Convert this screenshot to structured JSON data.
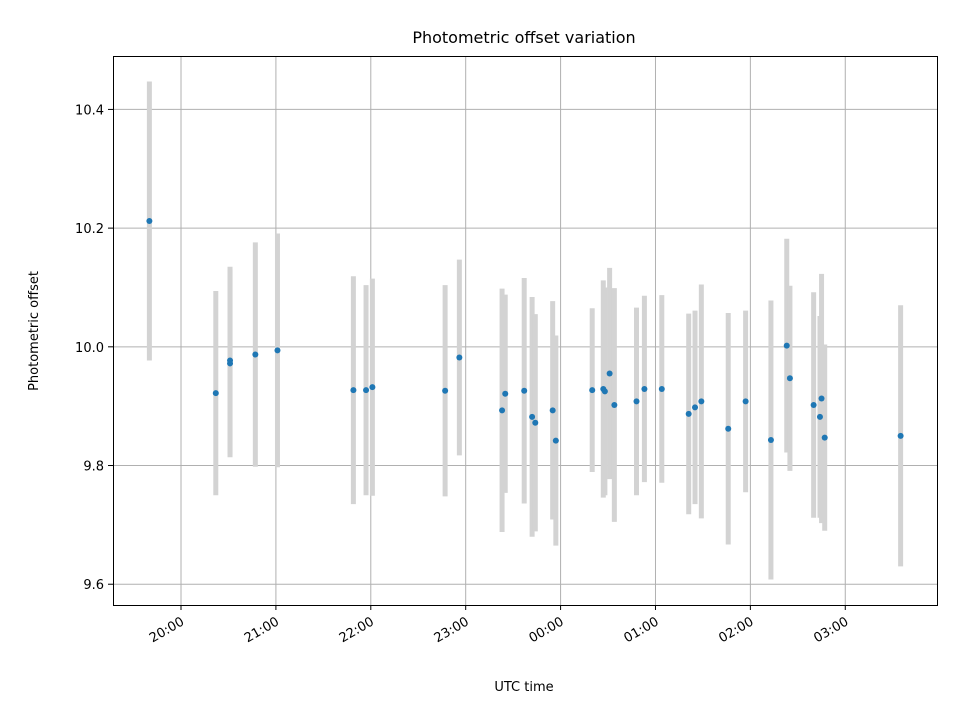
{
  "chart_data": {
    "type": "scatter",
    "title": "Photometric offset variation",
    "xlabel": "UTC time",
    "ylabel": "Photometric offset",
    "grid": true,
    "xlim": [
      "19:17",
      "03:58"
    ],
    "ylim": [
      9.565,
      10.49
    ],
    "xticks": [
      "20:00",
      "21:00",
      "22:00",
      "23:00",
      "00:00",
      "01:00",
      "02:00",
      "03:00"
    ],
    "yticks": [
      9.6,
      9.8,
      10.0,
      10.2,
      10.4
    ],
    "ytick_labels": [
      "9.6",
      "9.8",
      "10.0",
      "10.2",
      "10.4"
    ],
    "point_color": "#1f77b4",
    "errorbar_color": "#d3d3d3",
    "points": [
      {
        "x": "19:40",
        "y": 10.212,
        "err": 0.235
      },
      {
        "x": "20:22",
        "y": 9.922,
        "err": 0.172
      },
      {
        "x": "20:31",
        "y": 9.977,
        "err": 0.158
      },
      {
        "x": "20:31",
        "y": 9.972,
        "err": 0.158
      },
      {
        "x": "20:47",
        "y": 9.987,
        "err": 0.189
      },
      {
        "x": "21:01",
        "y": 9.994,
        "err": 0.197
      },
      {
        "x": "21:49",
        "y": 9.927,
        "err": 0.192
      },
      {
        "x": "21:57",
        "y": 9.927,
        "err": 0.177
      },
      {
        "x": "22:01",
        "y": 9.932,
        "err": 0.183
      },
      {
        "x": "22:47",
        "y": 9.926,
        "err": 0.178
      },
      {
        "x": "22:56",
        "y": 9.982,
        "err": 0.165
      },
      {
        "x": "23:23",
        "y": 9.893,
        "err": 0.205
      },
      {
        "x": "23:25",
        "y": 9.921,
        "err": 0.167
      },
      {
        "x": "23:37",
        "y": 9.926,
        "err": 0.19
      },
      {
        "x": "23:42",
        "y": 9.882,
        "err": 0.202
      },
      {
        "x": "23:44",
        "y": 9.872,
        "err": 0.183
      },
      {
        "x": "23:55",
        "y": 9.893,
        "err": 0.184
      },
      {
        "x": "23:57",
        "y": 9.842,
        "err": 0.177
      },
      {
        "x": "00:20",
        "y": 9.927,
        "err": 0.138
      },
      {
        "x": "00:27",
        "y": 9.929,
        "err": 0.183
      },
      {
        "x": "00:28",
        "y": 9.925,
        "err": 0.175
      },
      {
        "x": "00:31",
        "y": 9.955,
        "err": 0.178
      },
      {
        "x": "00:34",
        "y": 9.902,
        "err": 0.197
      },
      {
        "x": "00:48",
        "y": 9.908,
        "err": 0.158
      },
      {
        "x": "00:53",
        "y": 9.929,
        "err": 0.157
      },
      {
        "x": "01:04",
        "y": 9.929,
        "err": 0.158
      },
      {
        "x": "01:21",
        "y": 9.887,
        "err": 0.169
      },
      {
        "x": "01:25",
        "y": 9.898,
        "err": 0.163
      },
      {
        "x": "01:29",
        "y": 9.908,
        "err": 0.197
      },
      {
        "x": "01:46",
        "y": 9.862,
        "err": 0.195
      },
      {
        "x": "01:57",
        "y": 9.908,
        "err": 0.153
      },
      {
        "x": "02:13",
        "y": 9.843,
        "err": 0.235
      },
      {
        "x": "02:23",
        "y": 10.002,
        "err": 0.18
      },
      {
        "x": "02:25",
        "y": 9.947,
        "err": 0.156
      },
      {
        "x": "02:40",
        "y": 9.902,
        "err": 0.19
      },
      {
        "x": "02:44",
        "y": 9.882,
        "err": 0.17
      },
      {
        "x": "02:45",
        "y": 9.913,
        "err": 0.21
      },
      {
        "x": "02:47",
        "y": 9.847,
        "err": 0.157
      },
      {
        "x": "03:35",
        "y": 9.85,
        "err": 0.22
      }
    ]
  }
}
